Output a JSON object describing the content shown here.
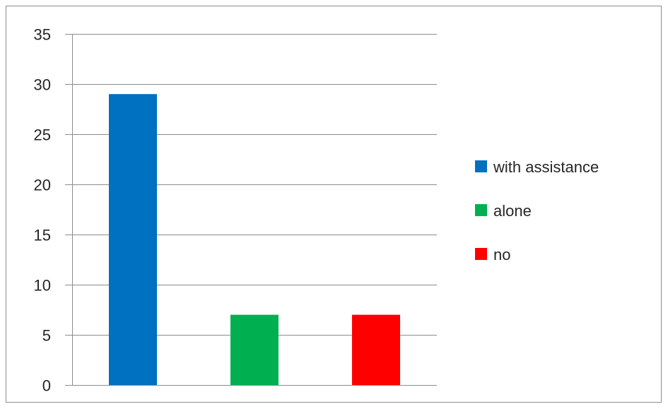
{
  "chart_data": {
    "type": "bar",
    "categories": [
      "with assistance",
      "alone",
      "no"
    ],
    "values": [
      29,
      7,
      7
    ],
    "colors": [
      "#0070c0",
      "#00b050",
      "#ff0000"
    ],
    "ylim": [
      0,
      35
    ],
    "yticks": [
      0,
      5,
      10,
      15,
      20,
      25,
      30,
      35
    ],
    "ytick_labels": [
      "0",
      "5",
      "10",
      "15",
      "20",
      "25",
      "30",
      "35"
    ],
    "grid": true,
    "legend": {
      "position": "right",
      "entries": [
        "with assistance",
        "alone",
        "no"
      ]
    }
  }
}
